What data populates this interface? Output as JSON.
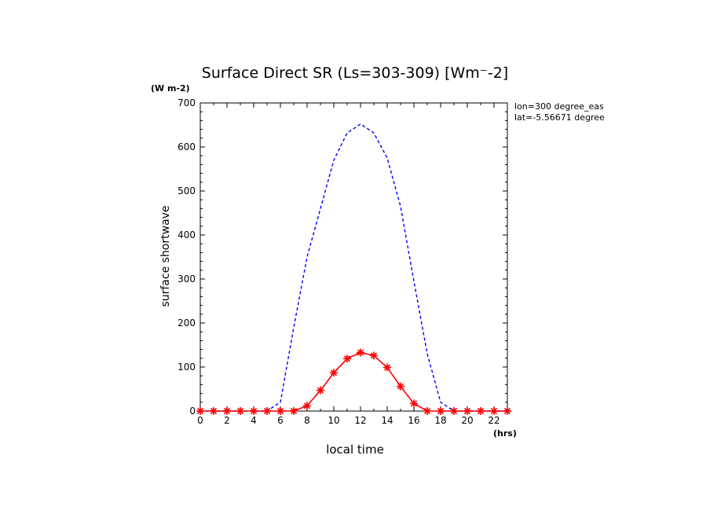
{
  "chart_data": {
    "type": "line",
    "title": "Surface Direct SR (Ls=303-309) [Wm⁻-2]",
    "ylabel": "surface shortwave",
    "yunit": "(W m-2)",
    "xlabel": "local time",
    "xunit": "(hrs)",
    "annotations": [
      "lon=300 degree_eas",
      "lat=-5.56671 degree"
    ],
    "xlim": [
      0,
      23
    ],
    "ylim": [
      0,
      700
    ],
    "x_ticks": [
      0,
      2,
      4,
      6,
      8,
      10,
      12,
      14,
      16,
      18,
      20,
      22
    ],
    "y_ticks": [
      0,
      100,
      200,
      300,
      400,
      500,
      600,
      700
    ],
    "x": [
      0,
      1,
      2,
      3,
      4,
      5,
      6,
      7,
      8,
      9,
      10,
      11,
      12,
      13,
      14,
      15,
      16,
      17,
      18,
      19,
      20,
      21,
      22,
      23
    ],
    "series": [
      {
        "color": "#0000ff",
        "style": "dashed",
        "marker": "none",
        "values": [
          0,
          0,
          0,
          0,
          0,
          0,
          20,
          190,
          350,
          460,
          570,
          632,
          652,
          632,
          575,
          465,
          295,
          130,
          20,
          0,
          0,
          0,
          0,
          0
        ]
      },
      {
        "color": "#ff0000",
        "style": "solid",
        "marker": "star",
        "values": [
          0,
          0,
          0,
          0,
          0,
          0,
          0,
          0,
          12,
          47,
          87,
          119,
          133,
          126,
          99,
          56,
          17,
          0,
          0,
          0,
          0,
          0,
          0,
          0
        ]
      }
    ]
  }
}
